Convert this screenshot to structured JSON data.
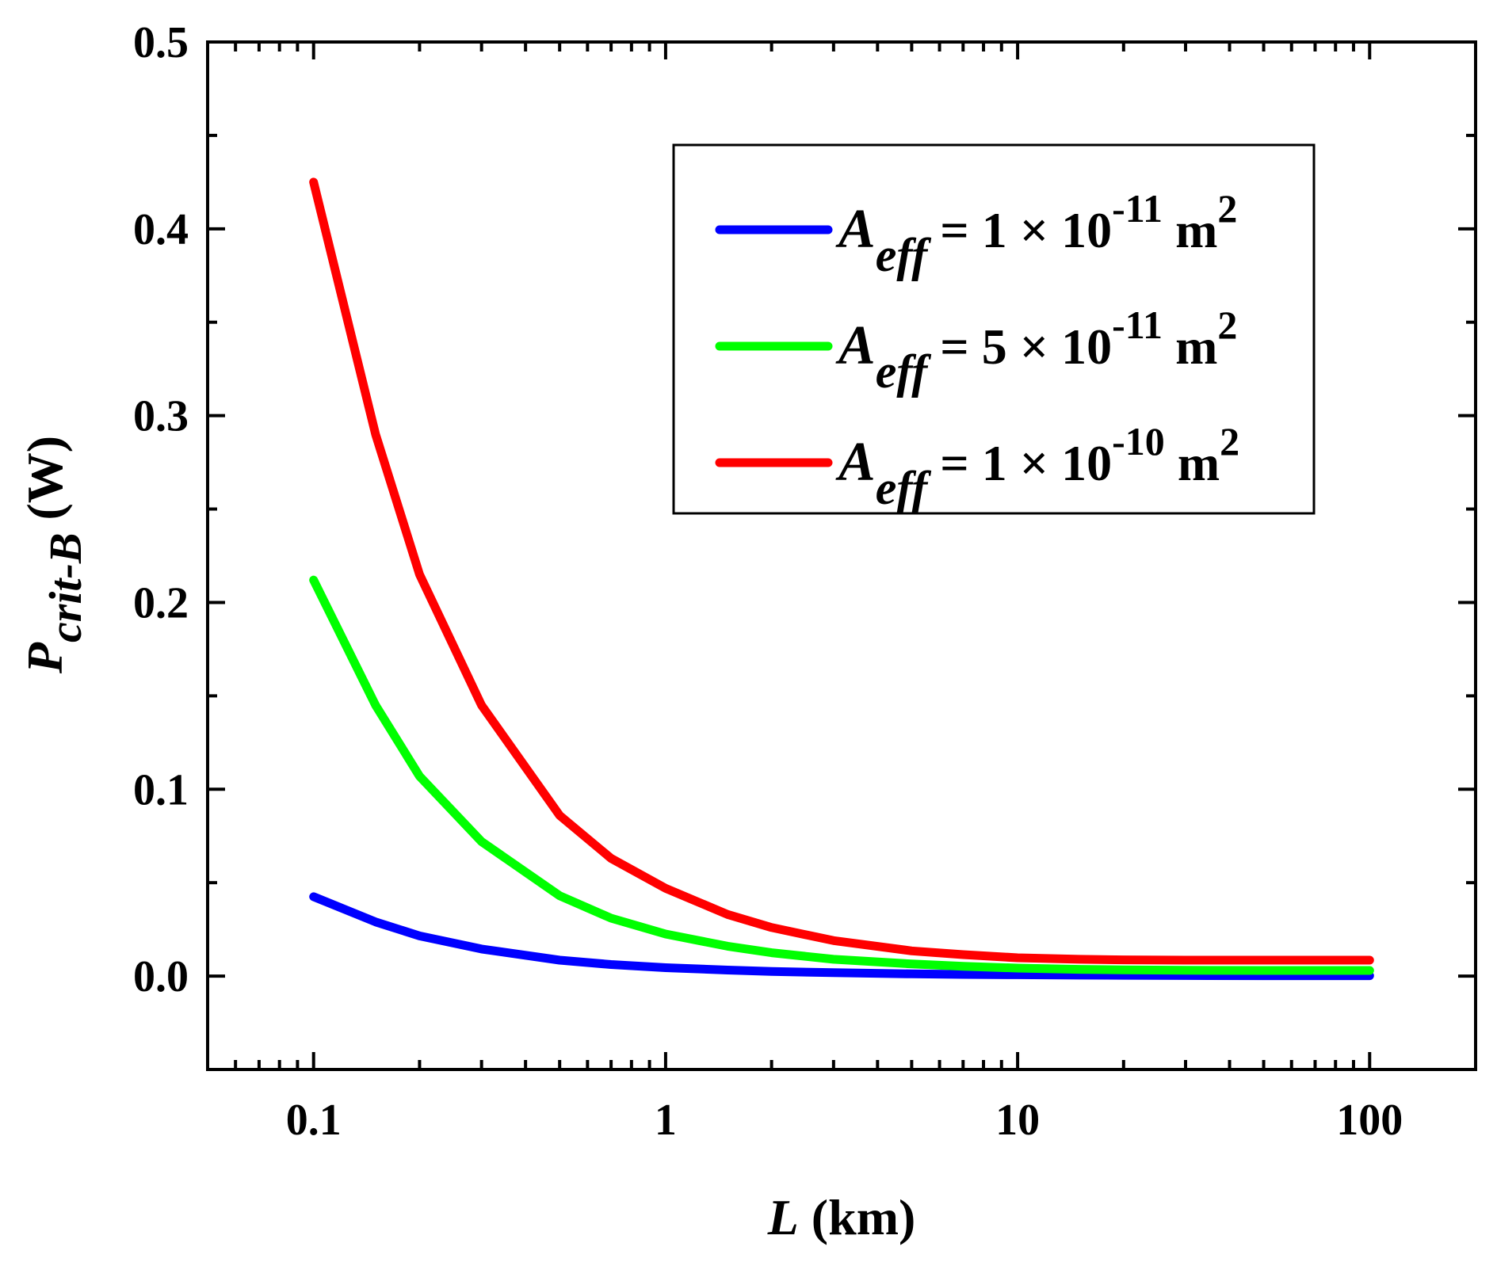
{
  "chart_data": {
    "type": "line",
    "title": "",
    "xlabel": {
      "var": "L",
      "unit": "(km)"
    },
    "ylabel": {
      "var": "P",
      "sub": "crit-B",
      "unit": "(W)"
    },
    "xscale": "log",
    "xlim": [
      0.05,
      200
    ],
    "ylim": [
      -0.05,
      0.5
    ],
    "xticks": [
      0.1,
      1,
      10,
      100
    ],
    "xtick_labels": [
      "0.1",
      "1",
      "10",
      "100"
    ],
    "yticks": [
      0.0,
      0.1,
      0.2,
      0.3,
      0.4,
      0.5
    ],
    "ytick_labels": [
      "0.0",
      "0.1",
      "0.2",
      "0.3",
      "0.4",
      "0.5"
    ],
    "grid": false,
    "legend_position": "top-right",
    "x": [
      0.1,
      0.15,
      0.2,
      0.3,
      0.5,
      0.7,
      1,
      1.5,
      2,
      3,
      5,
      7,
      10,
      15,
      20,
      30,
      50,
      70,
      100
    ],
    "series": [
      {
        "name": "A_eff = 1 × 10^-11 m^2",
        "label": {
          "var": "A",
          "sub": "eff",
          "coef": "= 1 × 10",
          "exp": "-11",
          "unit": "m",
          "unit_exp": "2"
        },
        "color": "#0000ff",
        "values": [
          0.0425,
          0.029,
          0.0215,
          0.0145,
          0.0085,
          0.0062,
          0.0045,
          0.0032,
          0.0025,
          0.0018,
          0.0012,
          0.0009,
          0.0007,
          0.0005,
          0.0004,
          0.0003,
          0.0002,
          0.0002,
          0.0002
        ]
      },
      {
        "name": "A_eff = 5 × 10^-11 m^2",
        "label": {
          "var": "A",
          "sub": "eff",
          "coef": "= 5 × 10",
          "exp": "-11",
          "unit": "m",
          "unit_exp": "2"
        },
        "color": "#00ff00",
        "values": [
          0.212,
          0.145,
          0.107,
          0.072,
          0.043,
          0.031,
          0.0225,
          0.016,
          0.0125,
          0.009,
          0.0065,
          0.0052,
          0.0043,
          0.0036,
          0.0033,
          0.0031,
          0.003,
          0.003,
          0.003
        ]
      },
      {
        "name": "A_eff = 1 × 10^-10 m^2",
        "label": {
          "var": "A",
          "sub": "eff",
          "coef": "= 1 × 10",
          "exp": "-10",
          "unit": "m",
          "unit_exp": "2"
        },
        "color": "#ff0000",
        "values": [
          0.425,
          0.29,
          0.215,
          0.145,
          0.086,
          0.063,
          0.047,
          0.033,
          0.026,
          0.019,
          0.0135,
          0.0115,
          0.0098,
          0.009,
          0.0087,
          0.0085,
          0.0085,
          0.0085,
          0.0085
        ]
      }
    ]
  }
}
